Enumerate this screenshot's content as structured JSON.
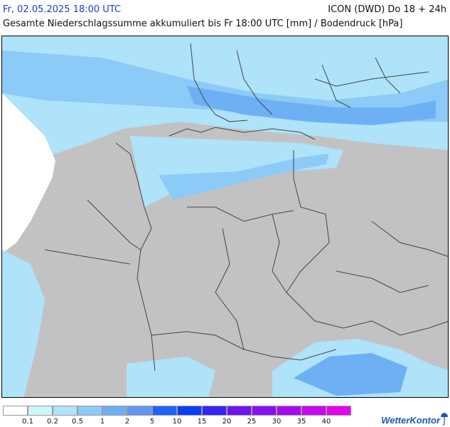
{
  "header": {
    "datetime": "Fr, 02.05.2025 18:00 UTC",
    "model": "ICON (DWD) Do 18 + 24h",
    "subtitle": "Gesamte Niederschlagssumme akkumuliert bis Fr 18:00 UTC [mm] / Bodendruck [hPa]"
  },
  "legend": {
    "colors": [
      "#ffffff",
      "#ccf6fb",
      "#aee3fa",
      "#8ccaf7",
      "#6eb0f4",
      "#6394f3",
      "#1e63f7",
      "#0c3ef5",
      "#3823f2",
      "#6b14f1",
      "#8b0ff0",
      "#a80aef",
      "#c608ee",
      "#e404ed",
      "#c800c8"
    ],
    "tick_labels": [
      "0.1",
      "0.2",
      "0.5",
      "1",
      "2",
      "5",
      "10",
      "15",
      "20",
      "25",
      "30",
      "35",
      "40"
    ]
  },
  "brand": {
    "name": "WetterKontor",
    "icon": "umbrella-icon"
  }
}
